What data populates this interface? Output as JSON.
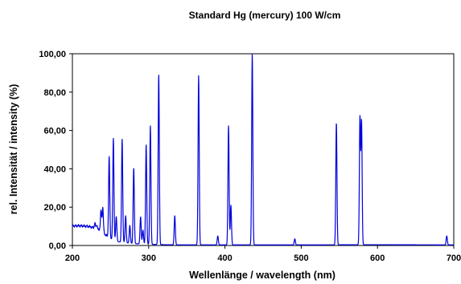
{
  "chart_data": {
    "type": "line",
    "title": "Standard Hg (mercury) 100 W/cm",
    "xlabel": "Wellenlänge / wavelength (nm)",
    "ylabel": "rel. Intensität / intensity (%)",
    "xlim": [
      200,
      700
    ],
    "ylim": [
      0,
      100
    ],
    "x_ticks": [
      200,
      300,
      400,
      500,
      600,
      700
    ],
    "x_tick_labels": [
      "200",
      "300",
      "400",
      "500",
      "600",
      "700"
    ],
    "y_ticks": [
      0,
      20,
      40,
      60,
      80,
      100
    ],
    "y_tick_labels": [
      "0,00",
      "20,00",
      "40,00",
      "60,00",
      "80,00",
      "100,00"
    ],
    "grid": false,
    "legend": "none",
    "series_color": "#0000dd",
    "baseline": [
      [
        200,
        10.2
      ],
      [
        210,
        10.3
      ],
      [
        220,
        10.0
      ],
      [
        225,
        9.6
      ],
      [
        228,
        9.2
      ],
      [
        230,
        8.6
      ],
      [
        233,
        8.0
      ],
      [
        236,
        8.4
      ],
      [
        240,
        6.8
      ],
      [
        243,
        5.8
      ],
      [
        246,
        4.6
      ],
      [
        250,
        3.6
      ],
      [
        255,
        2.6
      ],
      [
        260,
        2.0
      ],
      [
        270,
        1.4
      ],
      [
        280,
        1.0
      ],
      [
        290,
        0.8
      ],
      [
        300,
        0.6
      ],
      [
        320,
        0.4
      ],
      [
        350,
        0.3
      ],
      [
        400,
        0.3
      ],
      [
        500,
        0.3
      ],
      [
        600,
        0.4
      ],
      [
        700,
        0.3
      ]
    ],
    "peaks": [
      {
        "x": 229.5,
        "y": 11.5
      },
      {
        "x": 232.0,
        "y": 11.0
      },
      {
        "x": 237.5,
        "y": 18.0
      },
      {
        "x": 239.8,
        "y": 20.0
      },
      {
        "x": 248.2,
        "y": 46.5
      },
      {
        "x": 253.7,
        "y": 56.0
      },
      {
        "x": 257.5,
        "y": 15.0
      },
      {
        "x": 265.2,
        "y": 55.5
      },
      {
        "x": 269.8,
        "y": 15.5
      },
      {
        "x": 275.3,
        "y": 10.5
      },
      {
        "x": 280.4,
        "y": 40.5
      },
      {
        "x": 289.4,
        "y": 15.0
      },
      {
        "x": 292.5,
        "y": 8.0
      },
      {
        "x": 296.7,
        "y": 52.5
      },
      {
        "x": 302.2,
        "y": 62.5
      },
      {
        "x": 313.2,
        "y": 89.0
      },
      {
        "x": 334.2,
        "y": 15.5
      },
      {
        "x": 365.5,
        "y": 88.5
      },
      {
        "x": 390.6,
        "y": 5.0
      },
      {
        "x": 404.7,
        "y": 62.5
      },
      {
        "x": 407.8,
        "y": 21.0
      },
      {
        "x": 435.8,
        "y": 100.0
      },
      {
        "x": 491.6,
        "y": 3.5
      },
      {
        "x": 546.1,
        "y": 64.0
      },
      {
        "x": 577.0,
        "y": 66.5
      },
      {
        "x": 579.1,
        "y": 64.5
      },
      {
        "x": 690.8,
        "y": 5.0
      }
    ]
  }
}
